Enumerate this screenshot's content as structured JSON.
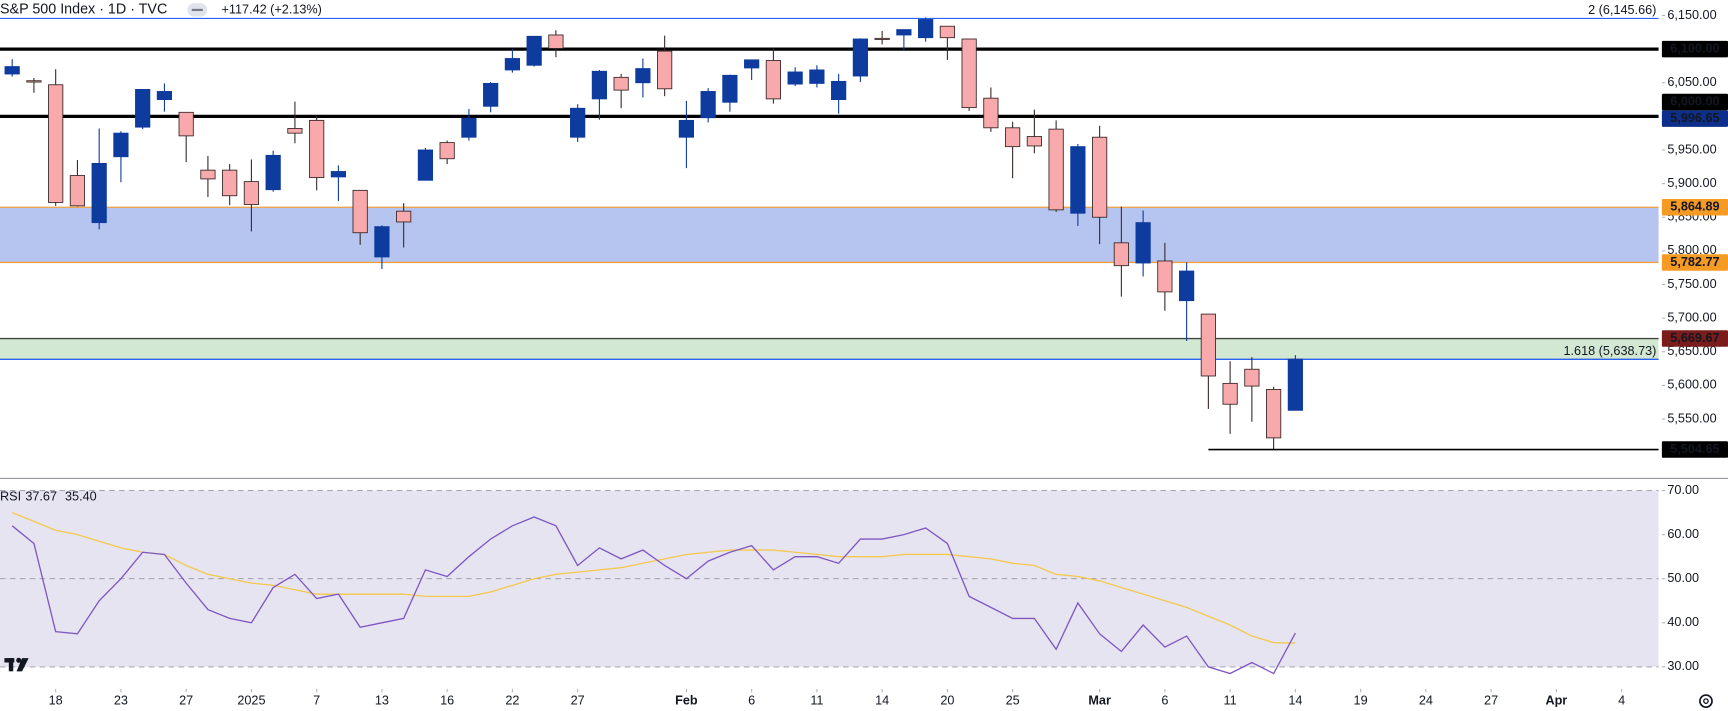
{
  "chart_data": [
    {
      "type": "candlestick",
      "title": "S&P 500 Index · 1D · TVC",
      "change": "+117.42 (+2.13%)",
      "change_color": "#2962ff",
      "x": [
        0,
        1,
        2,
        3,
        4,
        5,
        6,
        7,
        8,
        9,
        10,
        11,
        12,
        13,
        14,
        15,
        16,
        17,
        18,
        19,
        20,
        21,
        22,
        23,
        24,
        25,
        26,
        27,
        28,
        29,
        30,
        31,
        32,
        33,
        34,
        35,
        36,
        37,
        38,
        39,
        40,
        41,
        42,
        43,
        44,
        45,
        46,
        47,
        48,
        49,
        50,
        51,
        52,
        53,
        54,
        55,
        56,
        57,
        58,
        59
      ],
      "open": [
        6063,
        6053,
        6047,
        5912,
        5842,
        5940,
        5984,
        6025,
        6006,
        5920,
        5920,
        5903,
        5891,
        5982,
        5994,
        5910,
        5890,
        5791,
        5859,
        5905,
        5961,
        5969,
        6015,
        6069,
        6076,
        6121,
        5969,
        6026,
        6058,
        6050,
        6097,
        5969,
        5998,
        6021,
        6072,
        6083,
        6048,
        6049,
        6025,
        6060,
        6116,
        6121,
        6117,
        6134,
        6115,
        6027,
        5983,
        5970,
        5981,
        5856,
        5969,
        5812,
        5782,
        5785,
        5726,
        5706,
        5603,
        5624,
        5594,
        5563
      ],
      "high": [
        6085,
        6057,
        6070,
        5935,
        5982,
        5978,
        6040,
        6049,
        6006,
        5941,
        5929,
        5936,
        5949,
        6022,
        6000,
        5927,
        5890,
        5838,
        5871,
        5953,
        5964,
        6011,
        6051,
        6100,
        6119,
        6128,
        6018,
        6069,
        6063,
        6086,
        6120,
        6023,
        6042,
        6062,
        6084,
        6101,
        6073,
        6076,
        6063,
        6116,
        6127,
        6129,
        6147,
        6134,
        6115,
        6043,
        5992,
        6010,
        5994,
        5959,
        5986,
        5866,
        5860,
        5812,
        5783,
        5706,
        5636,
        5642,
        5598,
        5645
      ],
      "low": [
        6059,
        6035,
        5867,
        5866,
        5832,
        5902,
        5981,
        6007,
        5932,
        5880,
        5868,
        5829,
        5888,
        5960,
        5890,
        5874,
        5809,
        5773,
        5805,
        5905,
        5929,
        5964,
        6006,
        6065,
        6074,
        6088,
        5962,
        5995,
        6012,
        6028,
        6030,
        5923,
        5991,
        6007,
        6054,
        6019,
        6045,
        6043,
        6004,
        6051,
        6107,
        6099,
        6111,
        6084,
        6008,
        5977,
        5908,
        5945,
        5858,
        5837,
        5810,
        5732,
        5762,
        5711,
        5666,
        5565,
        5528,
        5546,
        5505,
        5563
      ],
      "close": [
        6074,
        6051,
        5872,
        5867,
        5930,
        5975,
        6040,
        6037,
        5971,
        5907,
        5882,
        5869,
        5942,
        5975,
        5909,
        5918,
        5827,
        5836,
        5843,
        5950,
        5937,
        5997,
        6049,
        6086,
        6119,
        6101,
        6012,
        6067,
        6039,
        6071,
        6041,
        5994,
        6037,
        6061,
        6084,
        6026,
        6066,
        6069,
        6052,
        6115,
        6115,
        6129,
        6144,
        6117,
        6013,
        5983,
        5955,
        5956,
        5861,
        5955,
        5850,
        5778,
        5842,
        5739,
        5770,
        5614,
        5572,
        5599,
        5522,
        5639
      ],
      "up_color": "#0d3b9e",
      "down_color": "#f7a9ab",
      "down_border": "#3a2a2a",
      "xlim": [
        -0.56,
        75.7
      ],
      "xticks": [
        {
          "value": 2,
          "label": "18"
        },
        {
          "value": 5,
          "label": "23"
        },
        {
          "value": 8,
          "label": "27"
        },
        {
          "value": 11,
          "label": "2025"
        },
        {
          "value": 14,
          "label": "7"
        },
        {
          "value": 17,
          "label": "13"
        },
        {
          "value": 20,
          "label": "16"
        },
        {
          "value": 23,
          "label": "22"
        },
        {
          "value": 26,
          "label": "27"
        },
        {
          "value": 31,
          "label": "Feb"
        },
        {
          "value": 34,
          "label": "6"
        },
        {
          "value": 37,
          "label": "11"
        },
        {
          "value": 40,
          "label": "14"
        },
        {
          "value": 43,
          "label": "20"
        },
        {
          "value": 46,
          "label": "25"
        },
        {
          "value": 50,
          "label": "Mar"
        },
        {
          "value": 53,
          "label": "6"
        },
        {
          "value": 56,
          "label": "11"
        },
        {
          "value": 59,
          "label": "14"
        },
        {
          "value": 62,
          "label": "19"
        },
        {
          "value": 65,
          "label": "24"
        },
        {
          "value": 68,
          "label": "27"
        },
        {
          "value": 71,
          "label": "Apr"
        },
        {
          "value": 74,
          "label": "4"
        }
      ],
      "ylim": [
        5465,
        6173
      ],
      "yticks": [
        {
          "value": 5550,
          "label": "5,550.00"
        },
        {
          "value": 5600,
          "label": "5,600.00"
        },
        {
          "value": 5650,
          "label": "5,650.00"
        },
        {
          "value": 5700,
          "label": "5,700.00"
        },
        {
          "value": 5750,
          "label": "5,750.00"
        },
        {
          "value": 5800,
          "label": "5,800.00"
        },
        {
          "value": 5850,
          "label": "5,850.00"
        },
        {
          "value": 5900,
          "label": "5,900.00"
        },
        {
          "value": 5950,
          "label": "5,950.00"
        },
        {
          "value": 6050,
          "label": "6,050.00"
        },
        {
          "value": 6150,
          "label": "6,150.00"
        }
      ],
      "bands": [
        {
          "from": 5782.77,
          "to": 5864.89,
          "color": "#b6c4f0",
          "border": "#f0a040"
        },
        {
          "from": 5638.73,
          "to": 5669.67,
          "color": "#d3e8d3",
          "border": "#444444"
        }
      ],
      "lines": [
        {
          "value": 6145.66,
          "color": "#2962ff",
          "width": 1,
          "label": "2 (6,145.66)"
        },
        {
          "value": 6100,
          "color": "#000000",
          "width": 3
        },
        {
          "value": 6000,
          "color": "#000000",
          "width": 3
        },
        {
          "value": 5638.73,
          "color": "#2962ff",
          "width": 1.2,
          "label": "1.618 (5,638.73)"
        },
        {
          "value": 5504.65,
          "color": "#000000",
          "width": 1.5,
          "start": 55
        }
      ],
      "markers": [
        {
          "value": 6100,
          "label": "6,100.00",
          "color": "#000000",
          "text_color": "#ffffff"
        },
        {
          "value": 5996.65,
          "label": "5,996.65",
          "color": "#0d2f8a",
          "text_color": "#ffffff"
        },
        {
          "value": 6000,
          "label": "6,000.00",
          "color": "#000000",
          "text_color": "#ffffff"
        },
        {
          "value": 5864.89,
          "label": "5,864.89",
          "color": "#f59a23",
          "text_color": "#000000"
        },
        {
          "value": 5782.77,
          "label": "5,782.77",
          "color": "#f59a23",
          "text_color": "#000000"
        },
        {
          "value": 5669.67,
          "label": "5,669.67",
          "color": "#7a1c1c",
          "text_color": "#ffffff"
        },
        {
          "value": 5504.65,
          "label": "5,504.65",
          "color": "#000000",
          "text_color": "#ffffff"
        }
      ]
    },
    {
      "type": "line",
      "title": "RSI",
      "series": [
        {
          "color": "#7e57c2",
          "last_label": "37.67",
          "values": [
            62,
            58,
            38,
            37.5,
            45,
            50,
            56,
            55.5,
            49,
            43,
            41,
            40,
            48,
            51,
            45.5,
            46.5,
            39,
            40,
            41,
            52,
            50.5,
            55,
            59,
            62,
            64,
            62,
            53,
            57,
            54.5,
            56.5,
            53,
            50,
            54,
            56,
            57.5,
            52,
            55,
            55,
            53.5,
            59,
            59,
            60,
            61.5,
            58,
            46,
            43.5,
            41,
            41,
            34,
            44.5,
            37.5,
            33.5,
            39.5,
            34.5,
            37,
            30,
            28.5,
            31,
            28.5,
            37.67
          ]
        },
        {
          "color": "#f2c94c",
          "last_label": "35.40",
          "values": [
            65,
            63,
            61,
            60,
            58.5,
            57,
            56,
            55.5,
            53,
            51,
            50,
            49,
            48.5,
            47.5,
            46.5,
            46.5,
            46.5,
            46.5,
            46.5,
            46,
            46,
            46,
            47,
            48.5,
            50,
            51,
            51.5,
            52,
            52.5,
            53.5,
            54.5,
            55.5,
            56,
            56.5,
            56.5,
            56.5,
            56,
            55.5,
            55,
            55,
            55,
            55.5,
            55.5,
            55.5,
            55,
            54.5,
            53.5,
            53,
            51,
            50.5,
            49.5,
            48,
            46.5,
            45,
            43.5,
            41.5,
            39.5,
            37,
            35.5,
            35.4
          ]
        }
      ],
      "ylim": [
        25.5,
        72
      ],
      "yticks": [
        {
          "value": 30,
          "label": "30.00"
        },
        {
          "value": 40,
          "label": "40.00"
        },
        {
          "value": 50,
          "label": "50.00"
        },
        {
          "value": 60,
          "label": "60.00"
        },
        {
          "value": 70,
          "label": "70.00"
        }
      ],
      "band": [
        30,
        70
      ],
      "band_color": "#e7e4f1",
      "hlines": [
        30,
        50,
        70
      ]
    }
  ]
}
